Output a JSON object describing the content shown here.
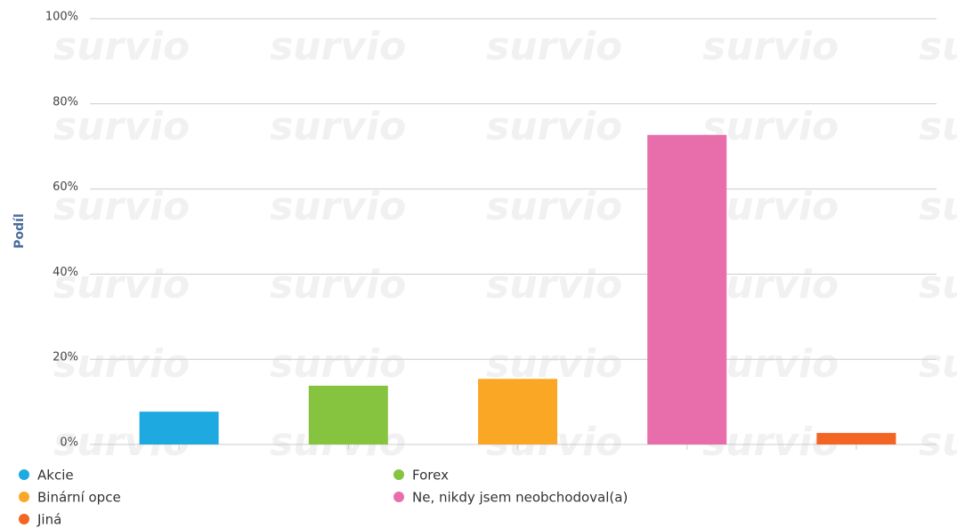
{
  "chart_data": {
    "type": "bar",
    "watermark": "survio",
    "y_label": "Podíl",
    "categories": [
      "Akcie",
      "Forex",
      "Binární opce",
      "Ne, nikdy jsem neobchodoval(a)",
      "Jiná"
    ],
    "values": [
      7.7,
      13.8,
      15.4,
      72.7,
      2.7
    ],
    "colors": [
      "#1eaae1",
      "#86c440",
      "#faa726",
      "#e76eab",
      "#f26522"
    ],
    "ylim": [
      0,
      100
    ],
    "yticks": [
      {
        "value": 0,
        "label": "0%"
      },
      {
        "value": 20,
        "label": "20%"
      },
      {
        "value": 40,
        "label": "40%"
      },
      {
        "value": 60,
        "label": "60%"
      },
      {
        "value": 80,
        "label": "80%"
      },
      {
        "value": 100,
        "label": "100%"
      }
    ],
    "grid": true
  }
}
